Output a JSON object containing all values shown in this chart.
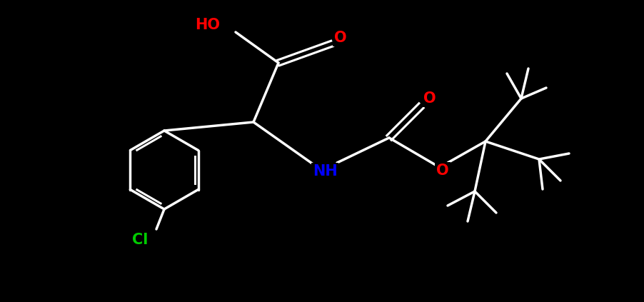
{
  "bg_color": "#000000",
  "bond_color": "#ffffff",
  "bond_width": 2.5,
  "atom_colors": {
    "O": "#ff0000",
    "N": "#0000ff",
    "Cl": "#00cc00",
    "C": "#ffffff",
    "H": "#ffffff"
  },
  "fig_width": 9.02,
  "fig_height": 4.23
}
